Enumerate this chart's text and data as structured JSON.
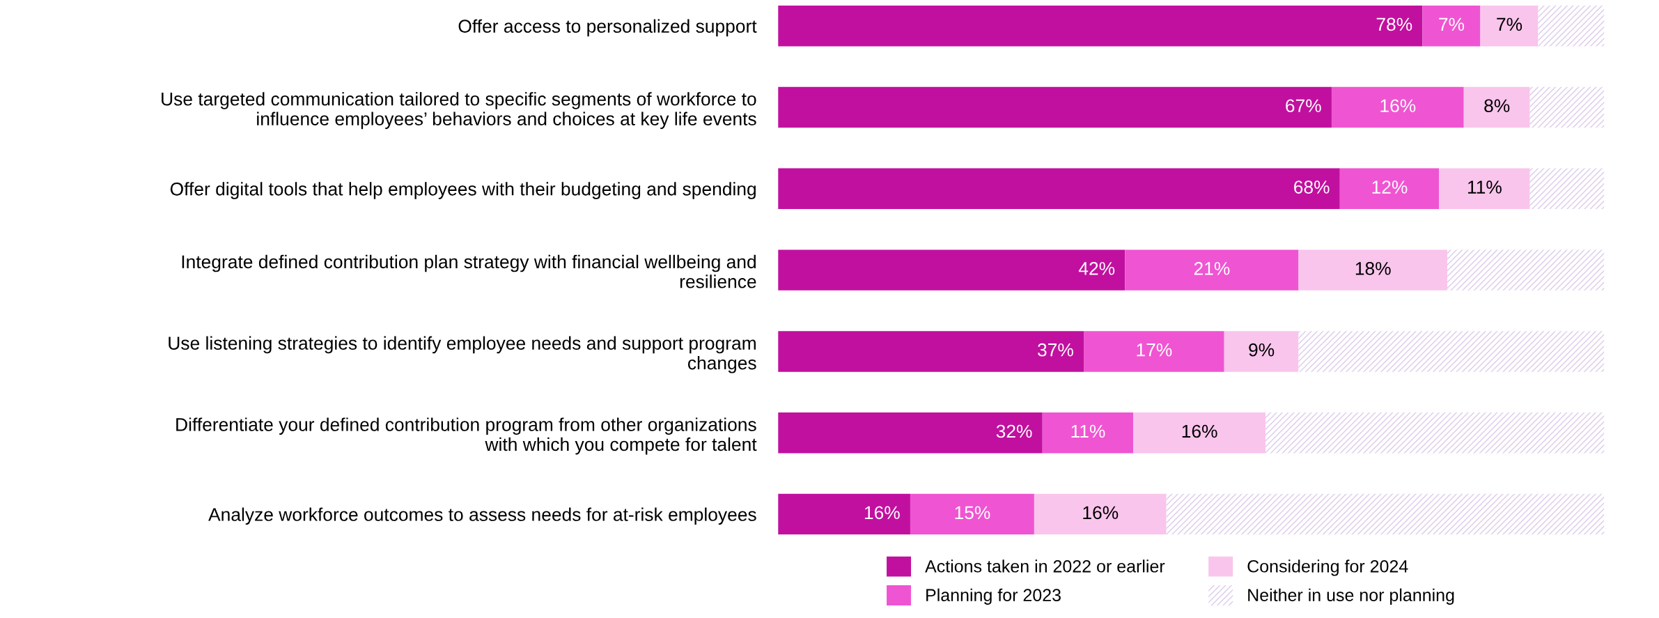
{
  "chart_data": {
    "type": "bar",
    "orientation": "horizontal",
    "stacked": true,
    "legend": "bottom",
    "categories": [
      "Offer access to personalized support",
      "Use targeted communication tailored to specific segments of workforce to\ninfluence employees’ behaviors and choices at key life events",
      "Offer digital tools that help employees with their budgeting and spending",
      "Integrate defined contribution plan strategy with financial wellbeing and\nresilience",
      "Use listening strategies to identify employee needs and support program\nchanges",
      "Differentiate your defined contribution program from other organizations\nwith which you compete for talent",
      "Analyze workforce outcomes to assess needs for at-risk employees"
    ],
    "series": [
      {
        "name": "Actions taken in 2022 or earlier",
        "color": "#c1109f",
        "values": [
          78,
          67,
          68,
          42,
          37,
          32,
          16
        ],
        "value_labels": [
          "78%",
          "67%",
          "68%",
          "42%",
          "37%",
          "32%",
          "16%"
        ]
      },
      {
        "name": "Planning for 2023",
        "color": "#ef55d2",
        "values": [
          7,
          16,
          12,
          21,
          17,
          11,
          15
        ],
        "value_labels": [
          "7%",
          "16%",
          "12%",
          "21%",
          "17%",
          "11%",
          "15%"
        ]
      },
      {
        "name": "Considering for 2024",
        "color": "#f9c5ec",
        "values": [
          7,
          8,
          11,
          18,
          9,
          16,
          16
        ],
        "value_labels": [
          "7%",
          "8%",
          "11%",
          "18%",
          "9%",
          "16%",
          "16%"
        ]
      },
      {
        "name": "Neither in use nor planning",
        "color": "#dccbea",
        "values": [
          8,
          9,
          9,
          19,
          37,
          41,
          53
        ]
      }
    ]
  }
}
